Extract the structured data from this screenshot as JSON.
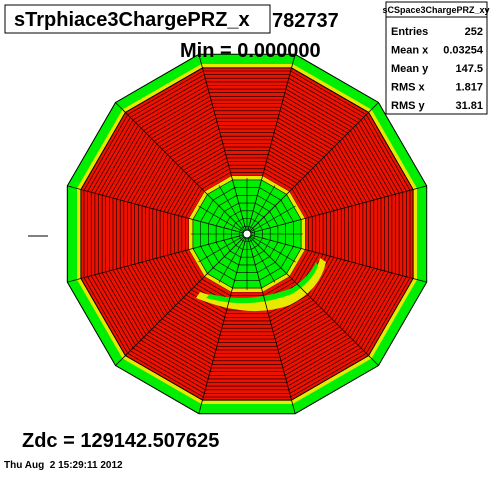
{
  "title": "sTrphiace3ChargePRZ_x",
  "max_text": "782737",
  "min_text": "Min = 0.000000",
  "stats": {
    "title": "sCSpace3ChargePRZ_xy",
    "rows": [
      [
        "Entries",
        "252"
      ],
      [
        "Mean x",
        "0.03254"
      ],
      [
        "Mean y",
        "147.5"
      ],
      [
        "RMS x",
        "1.817"
      ],
      [
        "RMS y",
        "31.81"
      ]
    ]
  },
  "footer": {
    "zdc": "Zdc = 129142.507625",
    "timestamp": "Thu Aug  2 15:29:11 2012"
  }
}
